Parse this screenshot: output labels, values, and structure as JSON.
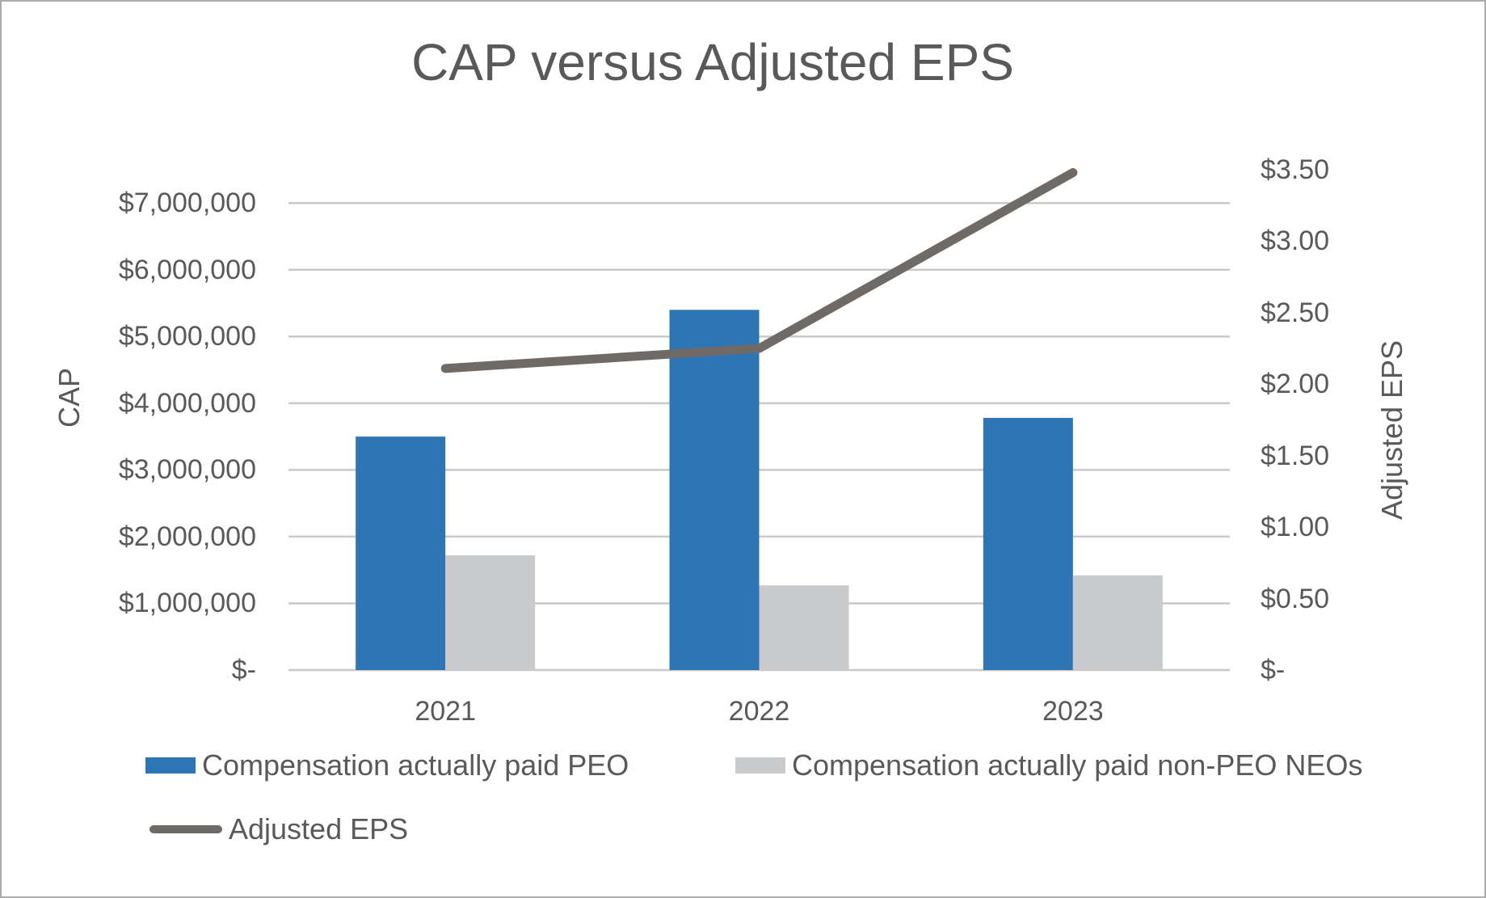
{
  "chart_data": {
    "type": "combo",
    "title": "CAP versus Adjusted EPS",
    "categories": [
      "2021",
      "2022",
      "2023"
    ],
    "series": [
      {
        "name": "Compensation actually paid PEO",
        "type": "bar",
        "axis": "left",
        "color": "#2E75B6",
        "values": [
          3500000,
          5400000,
          3780000
        ]
      },
      {
        "name": "Compensation actually paid non-PEO NEOs",
        "type": "bar",
        "axis": "left",
        "color": "#C9CACC",
        "values": [
          1720000,
          1270000,
          1420000
        ]
      },
      {
        "name": "Adjusted EPS",
        "type": "line",
        "axis": "right",
        "color": "#6F6A66",
        "values": [
          2.11,
          2.25,
          3.48
        ]
      }
    ],
    "axes": {
      "left": {
        "title": "CAP",
        "min": 0,
        "max": 7500000,
        "ticks": [
          {
            "v": 0,
            "label": "$-"
          },
          {
            "v": 1000000,
            "label": "$1,000,000"
          },
          {
            "v": 2000000,
            "label": "$2,000,000"
          },
          {
            "v": 3000000,
            "label": "$3,000,000"
          },
          {
            "v": 4000000,
            "label": "$4,000,000"
          },
          {
            "v": 5000000,
            "label": "$5,000,000"
          },
          {
            "v": 6000000,
            "label": "$6,000,000"
          },
          {
            "v": 7000000,
            "label": "$7,000,000"
          }
        ]
      },
      "right": {
        "title": "Adjusted EPS",
        "min": 0,
        "max": 3.5,
        "ticks": [
          {
            "v": 0,
            "label": "$-"
          },
          {
            "v": 0.5,
            "label": "$0.50"
          },
          {
            "v": 1,
            "label": "$1.00"
          },
          {
            "v": 1.5,
            "label": "$1.50"
          },
          {
            "v": 2,
            "label": "$2.00"
          },
          {
            "v": 2.5,
            "label": "$2.50"
          },
          {
            "v": 3,
            "label": "$3.00"
          },
          {
            "v": 3.5,
            "label": "$3.50"
          }
        ]
      }
    },
    "grid": true,
    "gridline_color": "#C9C9C9",
    "text_color": "#595959",
    "legend_position": "bottom-left"
  }
}
